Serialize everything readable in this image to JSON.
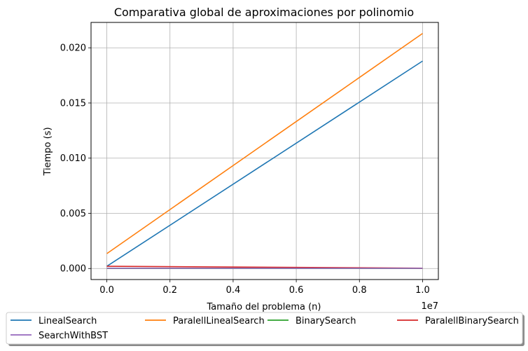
{
  "chart_data": {
    "type": "line",
    "title": "Comparativa global de aproximaciones por polinomio",
    "xlabel": "Tamaño del problema (n)",
    "ylabel": "Tiempo (s)",
    "x_offset_label": "1e7",
    "x": [
      0,
      10000000
    ],
    "xlim": [
      -500000,
      10500000
    ],
    "ylim": [
      -0.001,
      0.0223
    ],
    "x_ticks": [
      0,
      2000000,
      4000000,
      6000000,
      8000000,
      10000000
    ],
    "x_tick_labels": [
      "0.0",
      "0.2",
      "0.4",
      "0.6",
      "0.8",
      "1.0"
    ],
    "y_ticks": [
      0,
      0.005,
      0.01,
      0.015,
      0.02
    ],
    "y_tick_labels": [
      "0.000",
      "0.005",
      "0.010",
      "0.015",
      "0.020"
    ],
    "grid": true,
    "legend_position": "bottom-outside",
    "series": [
      {
        "name": "LinealSearch",
        "color": "#1f77b4",
        "values": [
          0.0002,
          0.0188
        ]
      },
      {
        "name": "ParalellLinealSearch",
        "color": "#ff7f0e",
        "values": [
          0.00135,
          0.0213
        ]
      },
      {
        "name": "BinarySearch",
        "color": "#2ca02c",
        "values": [
          1e-05,
          1e-05
        ]
      },
      {
        "name": "ParalellBinarySearch",
        "color": "#d62728",
        "values": [
          0.0002,
          3e-05
        ]
      },
      {
        "name": "SearchWithBST",
        "color": "#9467bd",
        "values": [
          2e-05,
          2e-05
        ]
      }
    ]
  }
}
